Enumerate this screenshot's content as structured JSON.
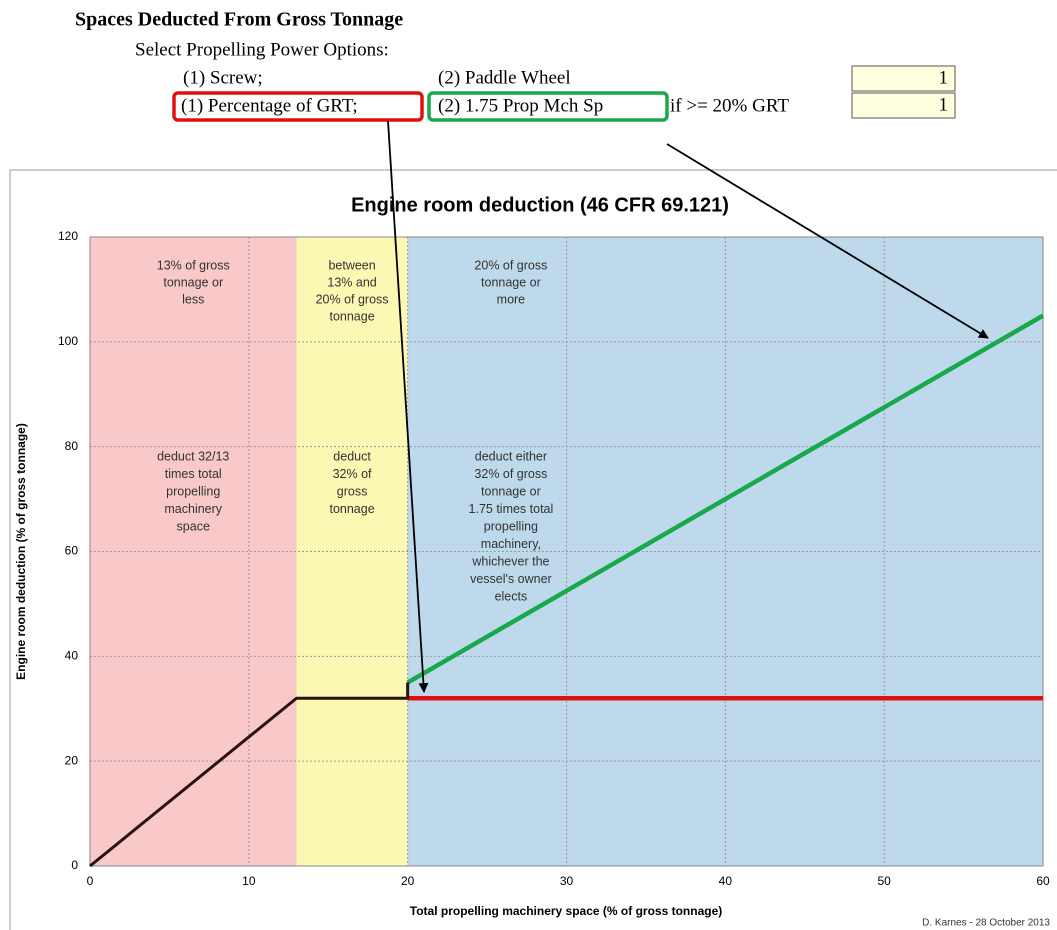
{
  "form": {
    "title": "Spaces Deducted From Gross Tonnage",
    "prompt": "Select Propelling Power Options:",
    "rows": [
      {
        "option1": "(1) Screw;",
        "option2": "(2)  Paddle Wheel",
        "note": null,
        "input": "1"
      },
      {
        "option1": "(1) Percentage of GRT;",
        "option2": "(2)  1.75 Prop Mch Sp",
        "note": "if >= 20% GRT",
        "input": "1"
      }
    ]
  },
  "chart_data": {
    "type": "line",
    "title": "Engine room deduction (46 CFR 69.121)",
    "x_label": "Total propelling machinery space (% of gross tonnage)",
    "y_label": "Engine room deduction (% of gross tonnage)",
    "credit": "D. Karnes - 28 October 2013",
    "xlim": [
      0,
      60
    ],
    "ylim": [
      0,
      120
    ],
    "xticks": [
      0,
      10,
      20,
      30,
      40,
      50,
      60
    ],
    "yticks": [
      0,
      20,
      40,
      60,
      80,
      100,
      120
    ],
    "grid": true,
    "regions": [
      {
        "xlim": [
          0,
          13
        ],
        "color": "#f9c8c8",
        "labels": [
          "13% of gross",
          "tonnage or",
          "less"
        ],
        "notes": [
          "deduct 32/13",
          "times total",
          "propelling",
          "machinery",
          "space"
        ]
      },
      {
        "xlim": [
          13,
          20
        ],
        "color": "#fbf8b4",
        "labels": [
          "between",
          "13% and",
          "20% of gross",
          "tonnage"
        ],
        "notes": [
          "deduct",
          "32% of",
          "gross",
          "tonnage"
        ]
      },
      {
        "xlim": [
          20,
          60
        ],
        "color": "#bfd9ec",
        "labels": [
          "20% of gross",
          "tonnage or",
          "more"
        ],
        "notes": [
          "deduct either",
          "32% of gross",
          "tonnage or",
          "1.75 times total",
          "propelling",
          "machinery,",
          "whichever the",
          "vessel's owner",
          "elects"
        ]
      }
    ],
    "series": [
      {
        "color": "#2a1210",
        "x": [
          0,
          13,
          20,
          20
        ],
        "values": [
          0,
          32,
          32,
          35
        ]
      },
      {
        "color": "#1aa84c",
        "x": [
          20,
          60
        ],
        "values": [
          35,
          105
        ]
      },
      {
        "color": "#e01010",
        "x": [
          20,
          60
        ],
        "values": [
          32,
          32
        ]
      }
    ]
  }
}
